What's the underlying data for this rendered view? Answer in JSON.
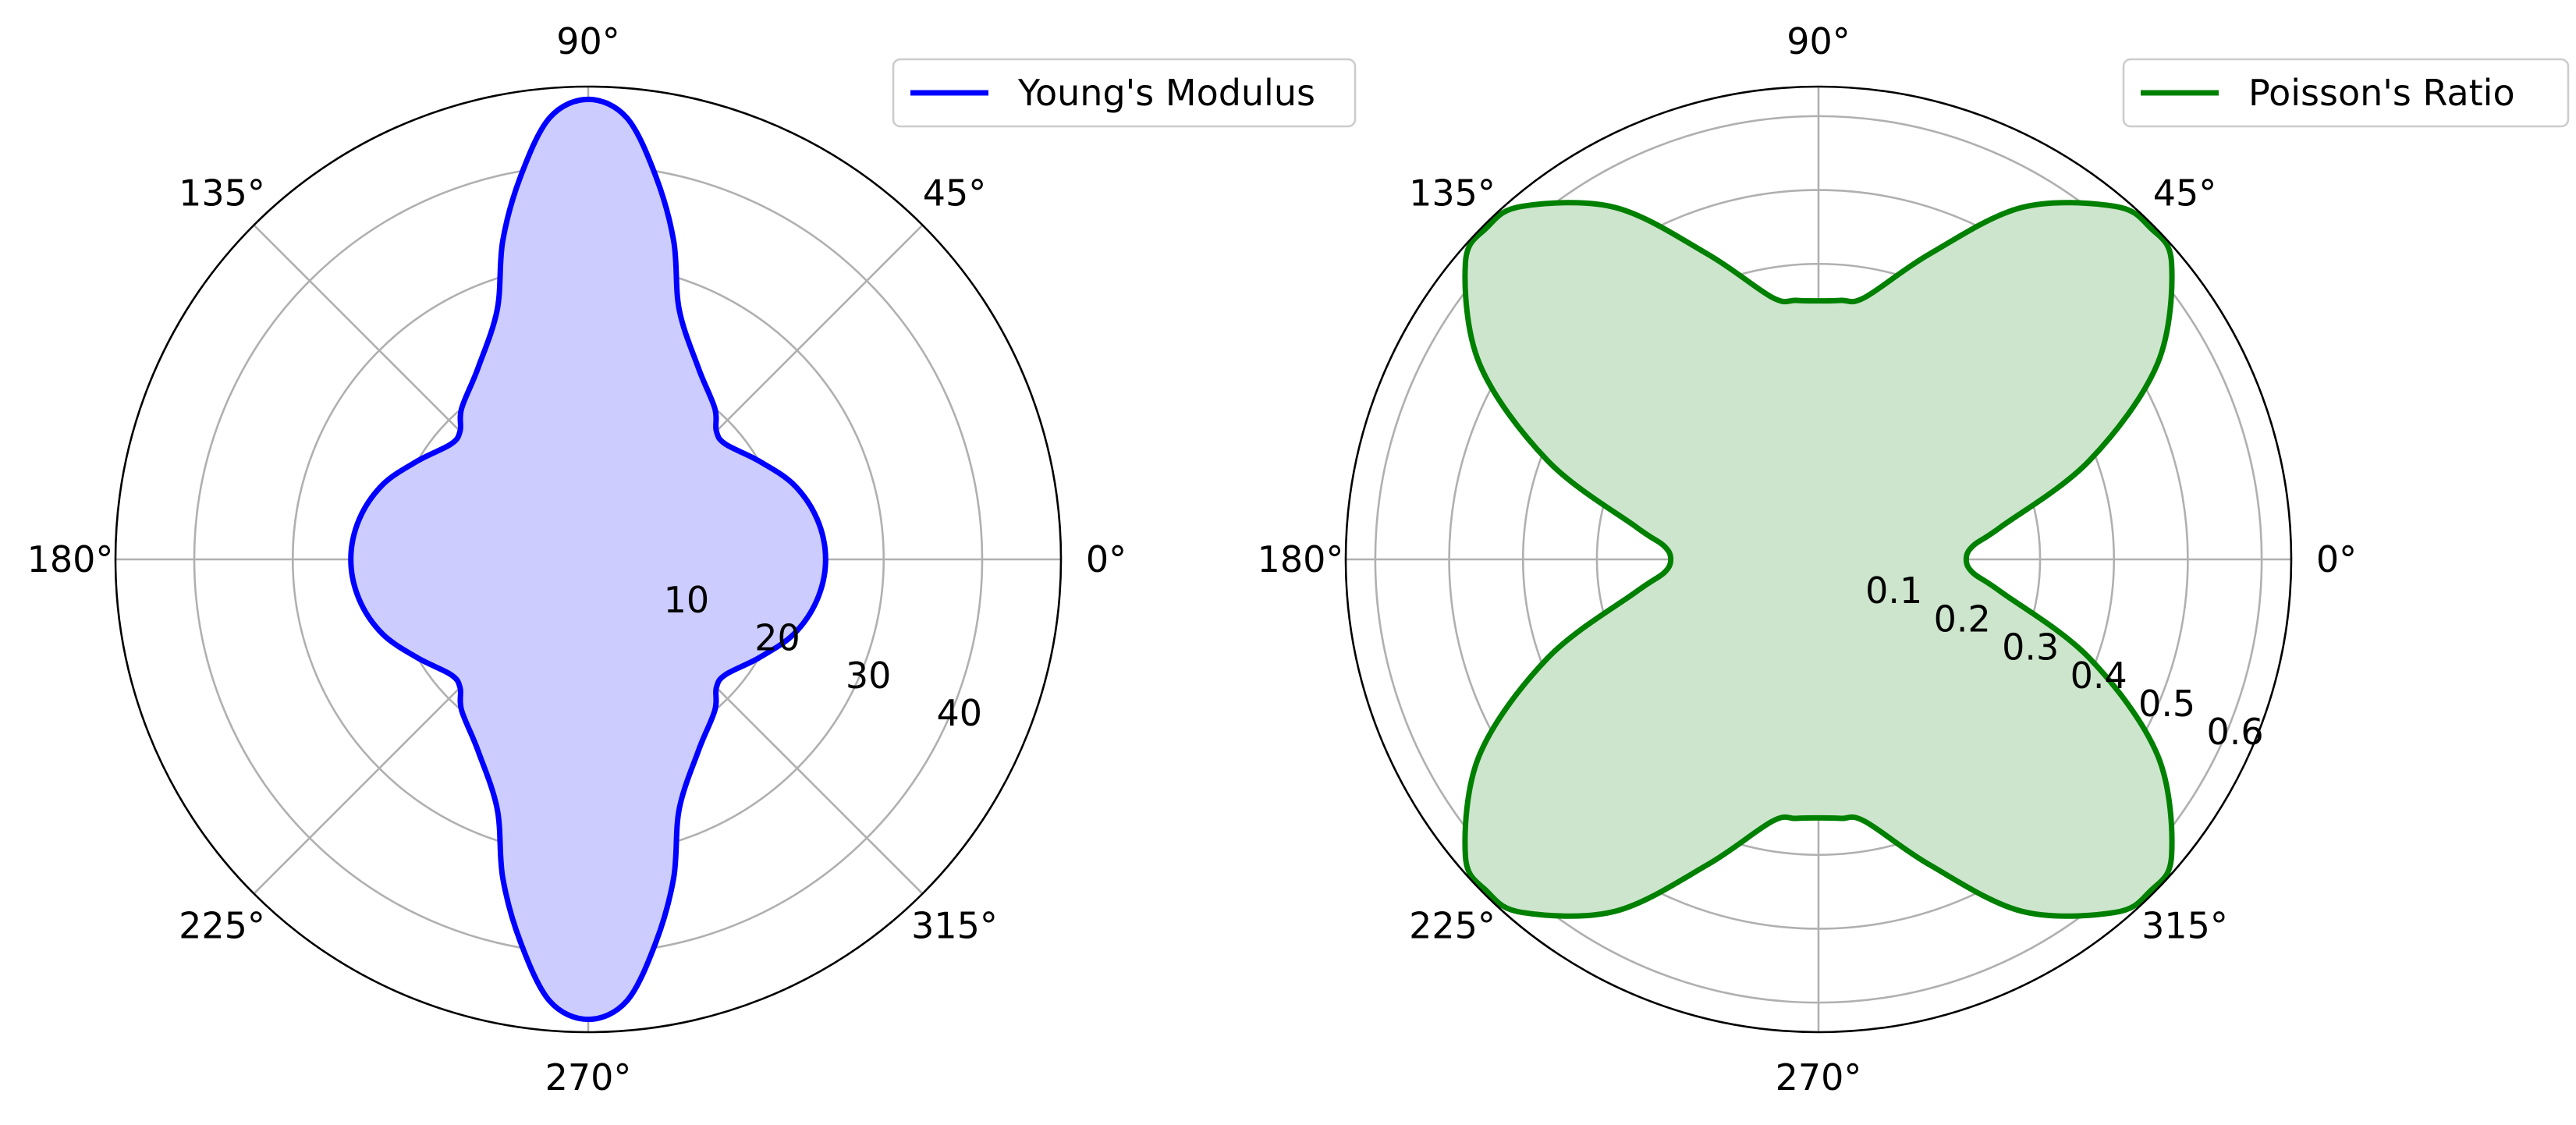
{
  "chart_data": [
    {
      "type": "line",
      "projection": "polar",
      "series": [
        {
          "name": "Young's Modulus",
          "color": "#0000ff",
          "fill_color": "#ccccff",
          "theta_deg": [
            0,
            10,
            20,
            30,
            40,
            45,
            50,
            60,
            70,
            75,
            80,
            85,
            90,
            95,
            100,
            105,
            110,
            120,
            130,
            135,
            140,
            150,
            160,
            170,
            180,
            190,
            200,
            210,
            220,
            225,
            230,
            240,
            250,
            255,
            260,
            265,
            270,
            275,
            280,
            285,
            290,
            300,
            310,
            315,
            320,
            330,
            340,
            350,
            360
          ],
          "r": [
            24.1,
            23.6,
            22.2,
            20.0,
            18.2,
            18.4,
            20.0,
            22.4,
            27.0,
            33.5,
            39.5,
            45.0,
            46.7,
            45.0,
            39.5,
            33.5,
            27.0,
            22.4,
            20.0,
            18.4,
            18.2,
            20.0,
            22.2,
            23.6,
            24.1,
            23.6,
            22.2,
            20.0,
            18.2,
            18.4,
            20.0,
            22.4,
            27.0,
            33.5,
            39.5,
            45.0,
            46.7,
            45.0,
            39.5,
            33.5,
            27.0,
            22.4,
            20.0,
            18.4,
            18.2,
            20.0,
            22.2,
            23.6,
            24.1
          ]
        }
      ],
      "radial_ticks": [
        "10",
        "20",
        "30",
        "40"
      ],
      "rlim": [
        0,
        48
      ],
      "theta_ticks": [
        "0°",
        "45°",
        "90°",
        "135°",
        "180°",
        "225°",
        "270°",
        "315°"
      ],
      "grid": true,
      "legend_position": "top-right"
    },
    {
      "type": "line",
      "projection": "polar",
      "series": [
        {
          "name": "Poisson's Ratio",
          "color": "#008000",
          "fill_color": "#cce5cc",
          "theta_deg": [
            0,
            5,
            10,
            20,
            30,
            40,
            45,
            50,
            60,
            70,
            80,
            85,
            90,
            95,
            100,
            110,
            120,
            130,
            135,
            140,
            150,
            160,
            170,
            175,
            180,
            185,
            190,
            200,
            210,
            220,
            225,
            230,
            240,
            250,
            260,
            265,
            270,
            275,
            280,
            290,
            300,
            310,
            315,
            320,
            330,
            340,
            350,
            355,
            360
          ],
          "r": [
            0.2,
            0.21,
            0.25,
            0.39,
            0.53,
            0.624,
            0.635,
            0.624,
            0.55,
            0.44,
            0.36,
            0.352,
            0.35,
            0.352,
            0.36,
            0.44,
            0.55,
            0.624,
            0.635,
            0.624,
            0.53,
            0.39,
            0.25,
            0.21,
            0.2,
            0.21,
            0.25,
            0.39,
            0.53,
            0.624,
            0.635,
            0.624,
            0.55,
            0.44,
            0.36,
            0.352,
            0.35,
            0.352,
            0.36,
            0.44,
            0.55,
            0.624,
            0.635,
            0.624,
            0.53,
            0.39,
            0.25,
            0.21,
            0.2
          ]
        }
      ],
      "radial_ticks": [
        "0.1",
        "0.2",
        "0.3",
        "0.4",
        "0.5",
        "0.6"
      ],
      "rlim": [
        0,
        0.64
      ],
      "theta_ticks": [
        "0°",
        "45°",
        "90°",
        "135°",
        "180°",
        "225°",
        "270°",
        "315°"
      ],
      "grid": true,
      "legend_position": "top-right"
    }
  ]
}
